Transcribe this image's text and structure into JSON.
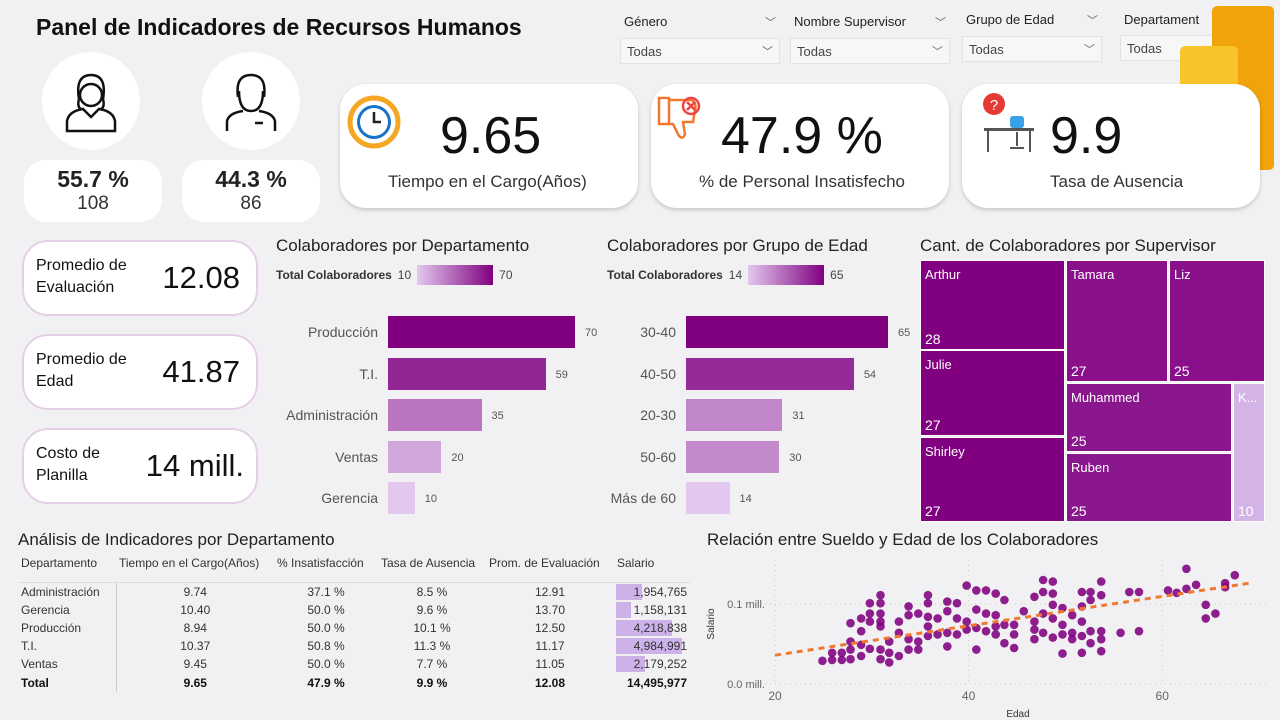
{
  "header": {
    "title": "Panel de Indicadores de Recursos Humanos"
  },
  "slicers": [
    {
      "label": "Género",
      "value": "Todas"
    },
    {
      "label": "Nombre Supervisor",
      "value": "Todas"
    },
    {
      "label": "Grupo de Edad",
      "value": "Todas"
    },
    {
      "label": "Departament",
      "value": "Todas"
    }
  ],
  "gender": {
    "female": {
      "pct": "55.7 %",
      "count": "108"
    },
    "male": {
      "pct": "44.3 %",
      "count": "86"
    }
  },
  "kpis": [
    {
      "value": "9.65",
      "label": "Tiempo en el Cargo(Años)",
      "icon": "clock-icon"
    },
    {
      "value": "47.9 %",
      "label": "% de Personal Insatisfecho",
      "icon": "thumbs-down-icon"
    },
    {
      "value": "9.9",
      "label": "Tasa de Ausencia",
      "icon": "empty-desk-icon"
    }
  ],
  "cards": [
    {
      "label": "Promedio de Evaluación",
      "value": "12.08"
    },
    {
      "label": "Promedio de Edad",
      "value": "41.87"
    },
    {
      "label": "Costo de Planilla",
      "value": "14 mill."
    }
  ],
  "colors": {
    "accent": "#800080",
    "light": "#d4b3e6",
    "trend": "#f07830"
  },
  "chart_data": [
    {
      "type": "bar",
      "title": "Colaboradores por Departamento",
      "legend": {
        "label": "Total Colaboradores",
        "min": "10",
        "max": "70"
      },
      "categories": [
        "Producción",
        "T.I.",
        "Administración",
        "Ventas",
        "Gerencia"
      ],
      "values": [
        70,
        59,
        35,
        20,
        10
      ]
    },
    {
      "type": "bar",
      "title": "Colaboradores por Grupo de Edad",
      "legend": {
        "label": "Total Colaboradores",
        "min": "14",
        "max": "65"
      },
      "categories": [
        "30-40",
        "40-50",
        "20-30",
        "50-60",
        "Más de 60"
      ],
      "values": [
        65,
        54,
        31,
        30,
        14
      ]
    },
    {
      "type": "treemap",
      "title": "Cant. de Colaboradores por Supervisor",
      "items": [
        {
          "name": "Arthur",
          "value": 28
        },
        {
          "name": "Julie",
          "value": 27
        },
        {
          "name": "Shirley",
          "value": 27
        },
        {
          "name": "Tamara",
          "value": 27
        },
        {
          "name": "Liz",
          "value": 25
        },
        {
          "name": "Muhammed",
          "value": 25
        },
        {
          "name": "Ruben",
          "value": 25
        },
        {
          "name": "K...",
          "value": 10
        }
      ]
    },
    {
      "type": "scatter",
      "title": "Relación entre Sueldo y Edad de los Colaboradores",
      "xlabel": "Edad",
      "ylabel": "Salario",
      "xticks": [
        "20",
        "40",
        "60"
      ],
      "yticks": [
        "0.0 mill.",
        "0.1 mill."
      ],
      "xlim": [
        20,
        70
      ],
      "ylim": [
        0,
        0.15
      ],
      "trend": [
        [
          20,
          0.036
        ],
        [
          69,
          0.126
        ]
      ],
      "points": [
        [
          24.9,
          0.029
        ],
        [
          25.9,
          0.039
        ],
        [
          25.9,
          0.03
        ],
        [
          26.9,
          0.039
        ],
        [
          26.9,
          0.03
        ],
        [
          27.8,
          0.053
        ],
        [
          27.8,
          0.043
        ],
        [
          27.8,
          0.031
        ],
        [
          27.8,
          0.076
        ],
        [
          28.9,
          0.082
        ],
        [
          28.9,
          0.066
        ],
        [
          28.9,
          0.049
        ],
        [
          28.9,
          0.035
        ],
        [
          29.8,
          0.101
        ],
        [
          29.8,
          0.088
        ],
        [
          29.8,
          0.078
        ],
        [
          29.8,
          0.044
        ],
        [
          30.9,
          0.111
        ],
        [
          30.9,
          0.101
        ],
        [
          30.9,
          0.088
        ],
        [
          30.9,
          0.078
        ],
        [
          30.9,
          0.072
        ],
        [
          30.9,
          0.043
        ],
        [
          30.9,
          0.031
        ],
        [
          31.8,
          0.053
        ],
        [
          31.8,
          0.039
        ],
        [
          31.8,
          0.027
        ],
        [
          32.8,
          0.078
        ],
        [
          32.8,
          0.064
        ],
        [
          32.8,
          0.035
        ],
        [
          33.8,
          0.097
        ],
        [
          33.8,
          0.086
        ],
        [
          33.8,
          0.056
        ],
        [
          33.8,
          0.043
        ],
        [
          34.8,
          0.088
        ],
        [
          34.8,
          0.053
        ],
        [
          34.8,
          0.043
        ],
        [
          35.8,
          0.111
        ],
        [
          35.8,
          0.101
        ],
        [
          35.8,
          0.084
        ],
        [
          35.8,
          0.072
        ],
        [
          35.8,
          0.06
        ],
        [
          36.8,
          0.082
        ],
        [
          36.8,
          0.062
        ],
        [
          37.8,
          0.103
        ],
        [
          37.8,
          0.091
        ],
        [
          37.8,
          0.064
        ],
        [
          37.8,
          0.047
        ],
        [
          38.8,
          0.101
        ],
        [
          38.8,
          0.082
        ],
        [
          38.8,
          0.062
        ],
        [
          39.8,
          0.123
        ],
        [
          39.8,
          0.078
        ],
        [
          39.8,
          0.068
        ],
        [
          40.8,
          0.117
        ],
        [
          40.8,
          0.093
        ],
        [
          40.8,
          0.07
        ],
        [
          40.8,
          0.043
        ],
        [
          41.8,
          0.117
        ],
        [
          41.8,
          0.088
        ],
        [
          41.8,
          0.066
        ],
        [
          42.8,
          0.113
        ],
        [
          42.8,
          0.086
        ],
        [
          42.8,
          0.072
        ],
        [
          42.8,
          0.062
        ],
        [
          43.7,
          0.105
        ],
        [
          43.7,
          0.074
        ],
        [
          43.7,
          0.051
        ],
        [
          44.7,
          0.074
        ],
        [
          44.7,
          0.062
        ],
        [
          44.7,
          0.045
        ],
        [
          45.7,
          0.091
        ],
        [
          46.8,
          0.109
        ],
        [
          46.8,
          0.078
        ],
        [
          46.8,
          0.068
        ],
        [
          46.8,
          0.056
        ],
        [
          47.7,
          0.13
        ],
        [
          47.7,
          0.115
        ],
        [
          47.7,
          0.088
        ],
        [
          47.7,
          0.064
        ],
        [
          48.7,
          0.128
        ],
        [
          48.7,
          0.113
        ],
        [
          48.7,
          0.099
        ],
        [
          48.7,
          0.082
        ],
        [
          48.7,
          0.058
        ],
        [
          49.7,
          0.095
        ],
        [
          49.7,
          0.074
        ],
        [
          49.7,
          0.062
        ],
        [
          49.7,
          0.038
        ],
        [
          50.7,
          0.086
        ],
        [
          50.7,
          0.064
        ],
        [
          50.7,
          0.056
        ],
        [
          51.7,
          0.115
        ],
        [
          51.7,
          0.097
        ],
        [
          51.7,
          0.078
        ],
        [
          51.7,
          0.06
        ],
        [
          51.7,
          0.039
        ],
        [
          52.6,
          0.115
        ],
        [
          52.6,
          0.105
        ],
        [
          52.6,
          0.066
        ],
        [
          52.6,
          0.051
        ],
        [
          53.7,
          0.128
        ],
        [
          53.7,
          0.111
        ],
        [
          53.7,
          0.066
        ],
        [
          53.7,
          0.056
        ],
        [
          53.7,
          0.041
        ],
        [
          55.7,
          0.064
        ],
        [
          56.6,
          0.115
        ],
        [
          57.6,
          0.115
        ],
        [
          57.6,
          0.066
        ],
        [
          60.6,
          0.117
        ],
        [
          61.5,
          0.114
        ],
        [
          62.5,
          0.144
        ],
        [
          62.5,
          0.119
        ],
        [
          63.5,
          0.124
        ],
        [
          64.5,
          0.099
        ],
        [
          64.5,
          0.082
        ],
        [
          65.5,
          0.088
        ],
        [
          66.5,
          0.126
        ],
        [
          66.5,
          0.121
        ],
        [
          67.5,
          0.136
        ]
      ]
    },
    {
      "type": "table",
      "title": "Análisis de Indicadores por Departamento",
      "columns": [
        "Departamento",
        "Tiempo en el Cargo(Años)",
        "% Insatisfacción",
        "Tasa de Ausencia",
        "Prom. de Evaluación",
        "Salario"
      ],
      "rows": [
        [
          "Administración",
          "9.74",
          "37.1 %",
          "8.5 %",
          "12.91",
          "1,954,765"
        ],
        [
          "Gerencia",
          "10.40",
          "50.0 %",
          "9.6 %",
          "13.70",
          "1,158,131"
        ],
        [
          "Producción",
          "8.94",
          "50.0 %",
          "10.1 %",
          "12.50",
          "4,218,838"
        ],
        [
          "T.I.",
          "10.37",
          "50.8 %",
          "11.3 %",
          "11.17",
          "4,984,991"
        ],
        [
          "Ventas",
          "9.45",
          "50.0 %",
          "7.7 %",
          "11.05",
          "2,179,252"
        ]
      ],
      "salary_values": [
        1954765,
        1158131,
        4218838,
        4984991,
        2179252
      ],
      "total": [
        "Total",
        "9.65",
        "47.9 %",
        "9.9 %",
        "12.08",
        "14,495,977"
      ]
    }
  ]
}
